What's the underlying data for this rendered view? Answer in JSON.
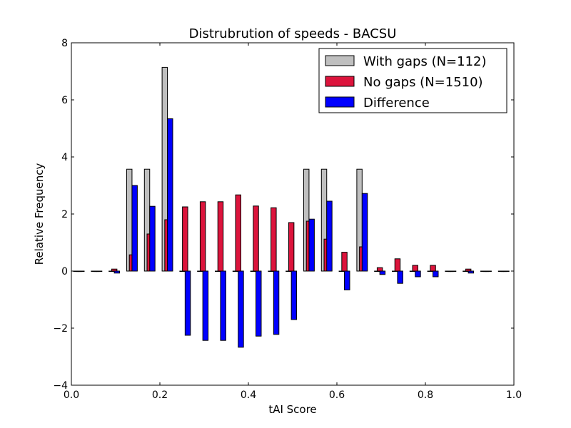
{
  "chart_data": {
    "type": "bar",
    "title": "Distrubrution of speeds - BACSU",
    "xlabel": "tAI Score",
    "ylabel": "Relative Frequency",
    "xlim": [
      0.0,
      1.0
    ],
    "ylim": [
      -4,
      8
    ],
    "xticks": [
      "0.0",
      "0.2",
      "0.4",
      "0.6",
      "0.8",
      "1.0"
    ],
    "yticks": [
      "−4",
      "−2",
      "0",
      "2",
      "4",
      "6",
      "8"
    ],
    "bin_width": 0.04,
    "x": [
      0.0,
      0.04,
      0.08,
      0.12,
      0.16,
      0.2,
      0.24,
      0.28,
      0.32,
      0.36,
      0.4,
      0.44,
      0.48,
      0.52,
      0.56,
      0.6,
      0.64,
      0.68,
      0.72,
      0.76,
      0.8,
      0.84,
      0.88,
      0.92,
      0.96
    ],
    "series": [
      {
        "name": "With gaps (N=112)",
        "color": "#bfbfbf",
        "values": [
          0,
          0,
          0,
          3.57,
          3.57,
          7.14,
          0,
          0,
          0,
          0,
          0,
          0,
          0,
          3.57,
          3.57,
          0,
          3.57,
          0,
          0,
          0,
          0,
          0,
          0,
          0,
          0
        ]
      },
      {
        "name": "No gaps (N=1510)",
        "color": "#dc143c",
        "values": [
          0,
          0,
          0.07,
          0.57,
          1.3,
          1.8,
          2.25,
          2.43,
          2.43,
          2.67,
          2.28,
          2.22,
          1.7,
          1.75,
          1.12,
          0.66,
          0.85,
          0.12,
          0.43,
          0.2,
          0.2,
          0,
          0.07,
          0,
          0
        ]
      },
      {
        "name": "Difference",
        "color": "#0000ff",
        "values": [
          0,
          0,
          -0.07,
          3.0,
          2.27,
          5.34,
          -2.25,
          -2.43,
          -2.43,
          -2.67,
          -2.28,
          -2.22,
          -1.7,
          1.82,
          2.45,
          -0.66,
          2.72,
          -0.12,
          -0.43,
          -0.2,
          -0.2,
          0,
          -0.07,
          0,
          0
        ]
      }
    ],
    "legend_position": "top-right",
    "grid": false
  }
}
